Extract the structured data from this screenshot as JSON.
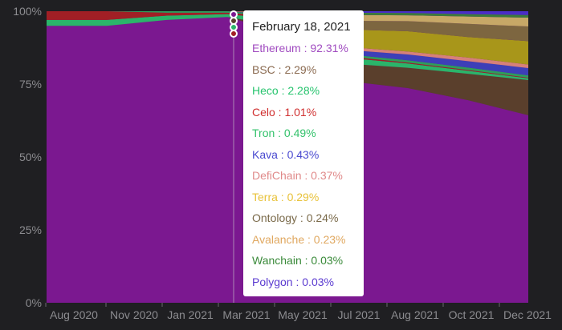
{
  "chart_data": {
    "type": "area",
    "stacked_percent": true,
    "x_ticks": [
      "Aug 2020",
      "Nov 2020",
      "Jan 2021",
      "Mar 2021",
      "May 2021",
      "Jul 2021",
      "Aug 2021",
      "Oct 2021",
      "Dec 2021"
    ],
    "y_ticks": [
      "0%",
      "25%",
      "50%",
      "75%",
      "100%"
    ],
    "ylim": [
      0,
      100
    ],
    "background": "#1f1f22",
    "series": [
      {
        "name": "Ethereum",
        "color": "#7b1890",
        "label_color": "#a04bc0",
        "values": [
          95,
          95,
          97,
          98,
          92.31,
          76,
          74,
          69,
          64
        ]
      },
      {
        "name": "BSC",
        "color": "#5a3f2c",
        "label_color": "#8a6a50",
        "values": [
          0,
          0,
          0,
          0,
          2.29,
          6,
          7,
          9,
          12
        ]
      },
      {
        "name": "Heco",
        "color": "#2bb56a",
        "label_color": "#27c46e",
        "values": [
          2,
          2,
          1.5,
          1,
          2.28,
          2,
          1.5,
          1,
          0.6
        ]
      },
      {
        "name": "Celo",
        "color": "#a11f25",
        "label_color": "#d03030",
        "values": [
          3,
          3,
          1,
          0.5,
          1.01,
          0.5,
          0.3,
          0.3,
          0.2
        ]
      },
      {
        "name": "Tron",
        "color": "#2e9e5a",
        "label_color": "#33c26b",
        "values": [
          0,
          0,
          0.5,
          0.5,
          0.49,
          0.7,
          0.8,
          0.8,
          0.8
        ]
      },
      {
        "name": "Kava",
        "color": "#3d3fb8",
        "label_color": "#4a4ad0",
        "values": [
          0,
          0,
          0,
          0,
          0.43,
          1.5,
          2,
          2.2,
          2.5
        ]
      },
      {
        "name": "DefiChain",
        "color": "#d6807a",
        "label_color": "#e08a8a",
        "values": [
          0,
          0,
          0,
          0,
          0.37,
          1,
          1,
          1.2,
          1.2
        ]
      },
      {
        "name": "Terra",
        "color": "#a8961a",
        "label_color": "#e8c23a",
        "values": [
          0,
          0,
          0,
          0,
          0.29,
          6,
          7,
          7,
          8
        ]
      },
      {
        "name": "Ontology",
        "color": "#7d6640",
        "label_color": "#7a6a4a",
        "values": [
          0,
          0,
          0,
          0,
          0.24,
          3,
          3.5,
          4.5,
          5
        ]
      },
      {
        "name": "Avalanche",
        "color": "#c7a867",
        "label_color": "#e0a860",
        "values": [
          0,
          0,
          0,
          0,
          0.23,
          2,
          2,
          2.5,
          3
        ]
      },
      {
        "name": "Wanchain",
        "color": "#3c7a3c",
        "label_color": "#3a8a3a",
        "values": [
          0,
          0,
          0,
          0,
          0.03,
          0.8,
          0.8,
          0.8,
          0.9
        ]
      },
      {
        "name": "Polygon",
        "color": "#4a2dc7",
        "label_color": "#5a3ad0",
        "values": [
          0,
          0,
          0,
          0,
          0.03,
          0.5,
          0.6,
          1,
          1.3
        ]
      }
    ]
  },
  "tooltip": {
    "date": "February 18, 2021",
    "rows": [
      {
        "label": "Ethereum : 92.31%"
      },
      {
        "label": "BSC : 2.29%"
      },
      {
        "label": "Heco : 2.28%"
      },
      {
        "label": "Celo : 1.01%"
      },
      {
        "label": "Tron : 0.49%"
      },
      {
        "label": "Kava : 0.43%"
      },
      {
        "label": "DefiChain : 0.37%"
      },
      {
        "label": "Terra : 0.29%"
      },
      {
        "label": "Ontology : 0.24%"
      },
      {
        "label": "Avalanche : 0.23%"
      },
      {
        "label": "Wanchain : 0.03%"
      },
      {
        "label": "Polygon : 0.03%"
      }
    ]
  }
}
